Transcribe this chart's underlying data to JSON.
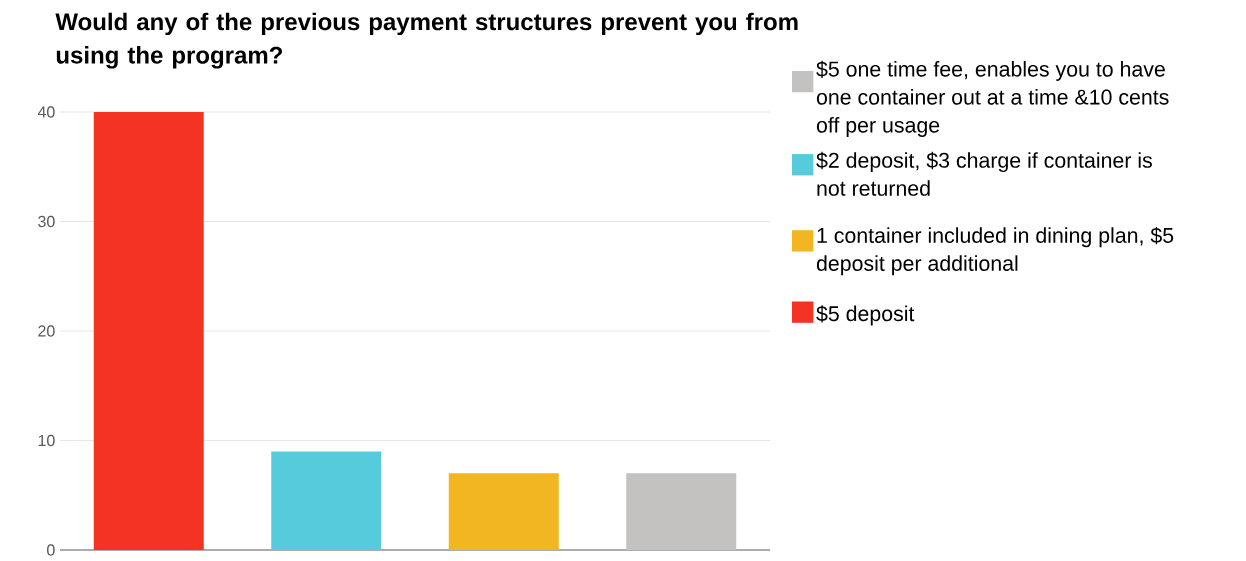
{
  "chart_data": {
    "type": "bar",
    "title": "Would any of the previous payment structures prevent you from using the program?",
    "categories": [
      null,
      null,
      null,
      null
    ],
    "series": [
      {
        "name": "$5 one time fee, enables you to have one container out at a time &10 cents off per usage",
        "color": "#c4c1c1",
        "values": [
          null,
          null,
          null,
          7
        ]
      },
      {
        "name": "$2 deposit, $3 charge if container is not returned",
        "color": "#55cbdb",
        "values": [
          null,
          9,
          null,
          null
        ]
      },
      {
        "name": "1 container included in dining plan, $5 deposit per additional",
        "color": "#f3b623",
        "values": [
          null,
          null,
          7,
          null
        ]
      },
      {
        "name": "$5 deposit",
        "color": "#f53324",
        "values": [
          40,
          null,
          null,
          null
        ]
      }
    ],
    "stacked": true,
    "ylim": [
      0,
      40
    ],
    "yticks": [
      0,
      10,
      20,
      30,
      40
    ],
    "grid": "y",
    "legend": "right"
  }
}
